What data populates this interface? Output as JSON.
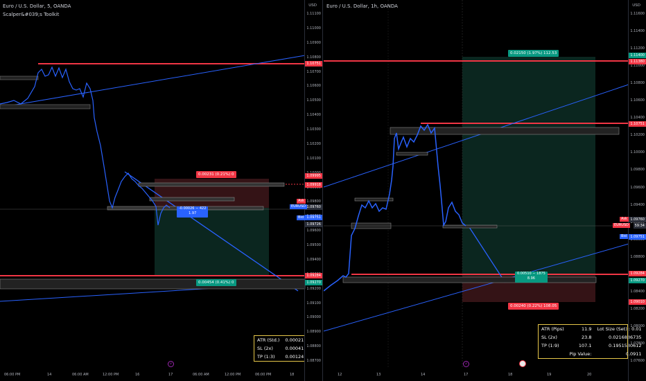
{
  "left": {
    "title": "Euro / U.S. Dollar, 5, OANDA",
    "indicator": "Scalper&#039;s Toolkit",
    "currency": "USD",
    "y_ticks": [
      "1.11100",
      "1.11000",
      "1.10900",
      "1.10800",
      "1.10700",
      "1.10600",
      "1.10500",
      "1.10400",
      "1.10300",
      "1.10200",
      "1.10100",
      "1.10000",
      "1.09900",
      "1.09800",
      "1.09700",
      "1.09600",
      "1.09500",
      "1.09400",
      "1.09300",
      "1.09200",
      "1.09100",
      "1.09000",
      "1.08900",
      "1.08800",
      "1.08700"
    ],
    "x_labels": [
      "06:00 PM",
      "14",
      "06:00 AM",
      "12:00 PM",
      "16",
      "17",
      "06:00 AM",
      "12:00 PM",
      "06:00 PM",
      "18"
    ],
    "price_tags": {
      "top_red": "1.10751",
      "ask_label": "Ask",
      "ask_value": "1.09760",
      "symbol": "EURUSD",
      "symbol_value": "04:34",
      "bid_label": "Bid",
      "bid_value": "1.09751",
      "stop": "1.09995",
      "stop2": "1.09918",
      "entry": "1.09726",
      "target": "1.09284",
      "target2": "1.09270"
    },
    "pills": {
      "risk": "0.00231 (0.21%) 0",
      "middle_line1": "-0.00026 − 422",
      "middle_line2": "1.97",
      "reward": "0.00454 (0.41%) 0"
    },
    "info_box": [
      {
        "label": "ATR (Std.)",
        "value": "0.00021"
      },
      {
        "label": "SL (2x)",
        "value": "0.00041"
      },
      {
        "label": "TP (1:3)",
        "value": "0.00124"
      }
    ]
  },
  "right": {
    "title": "Euro / U.S. Dollar, 1h, OANDA",
    "currency": "USD",
    "y_ticks": [
      "1.11600",
      "1.11400",
      "1.11200",
      "1.11000",
      "1.10800",
      "1.10600",
      "1.10400",
      "1.10200",
      "1.10000",
      "1.09800",
      "1.09600",
      "1.09400",
      "1.09200",
      "1.09000",
      "1.08800",
      "1.08600",
      "1.08400",
      "1.08200",
      "1.08000",
      "1.07800",
      "1.07600"
    ],
    "x_labels": [
      "12",
      "13",
      "14",
      "17",
      "18",
      "19",
      "20"
    ],
    "price_tags": {
      "target_top": "1.11400",
      "target_top2": "1.11380",
      "resistance": "1.10751",
      "ask_label": "Ask",
      "ask_value": "1.09760",
      "symbol": "EURUSD",
      "symbol_value": "59:34",
      "bid_label": "Bid",
      "bid_value": "1.09751",
      "support": "1.09284",
      "support2": "1.09270",
      "stop": "1.09010"
    },
    "pills": {
      "reward": "0.02150 (1.97%) 112.53",
      "middle_line1": "0.00510 − 1875",
      "middle_line2": "8.96",
      "risk": "0.00240 (0.22%) 108.05"
    },
    "info_box": {
      "row1": {
        "label": "ATR (Pips)",
        "value": "11.9",
        "label2": "Lot Size (Set) : 0.01"
      },
      "row2": {
        "label": "SL (2x)",
        "value": "23.8",
        "value2": "0.0216836735"
      },
      "row3": {
        "label": "TP (1:9)",
        "value": "107.1",
        "value2": "0.1951530612"
      },
      "row4": {
        "label": "Pip Value:",
        "value2": "0.0911"
      }
    }
  },
  "colors": {
    "red": "#f23645",
    "blue": "#2962ff",
    "green": "#089981",
    "candle": "#2962ff",
    "box_border": "#e8c84a"
  }
}
